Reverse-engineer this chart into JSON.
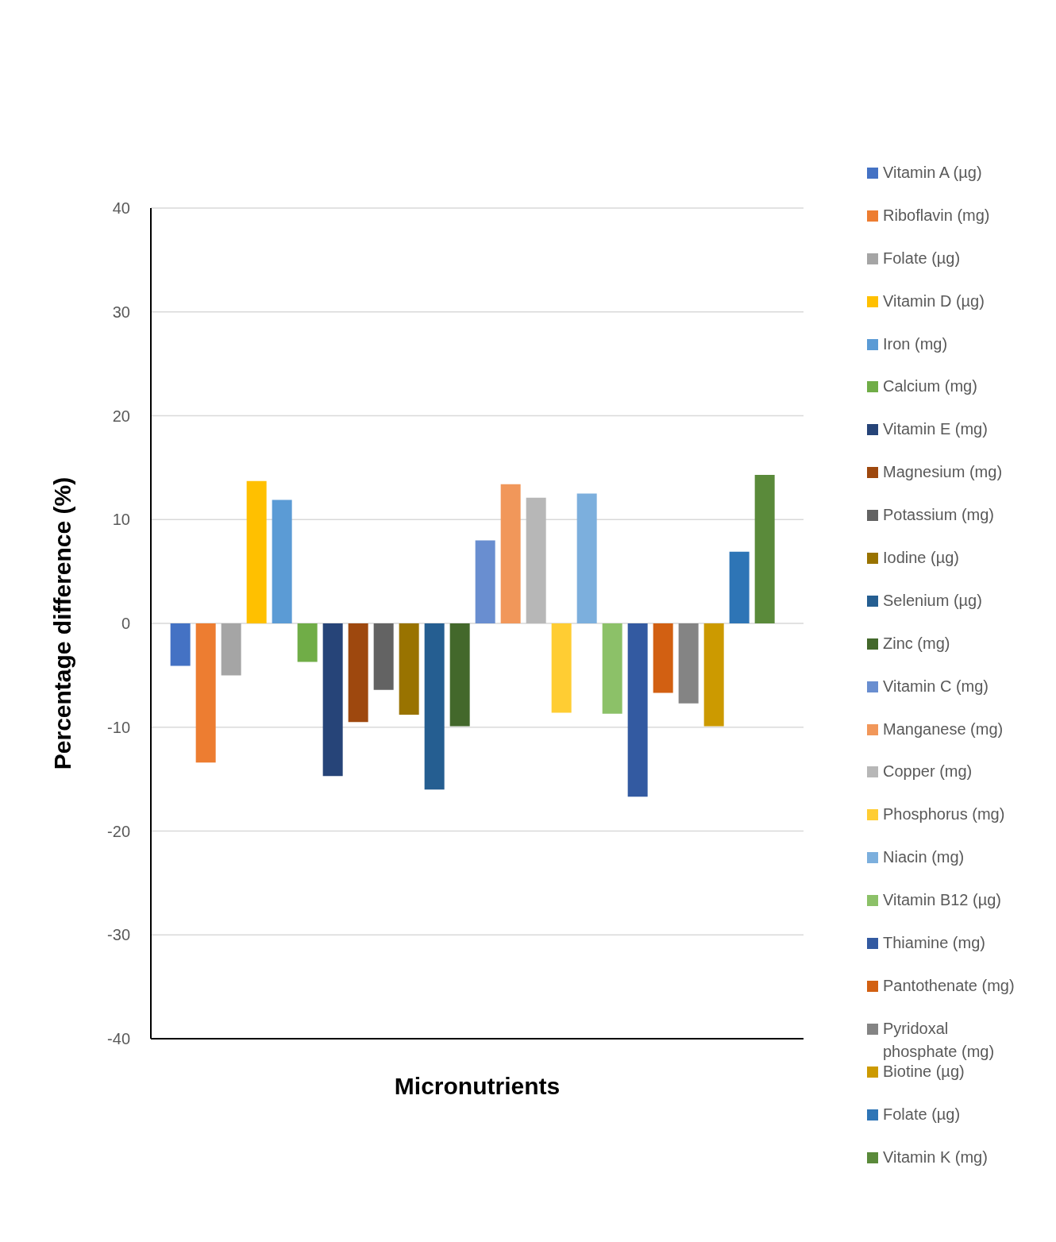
{
  "chart_data": {
    "type": "bar",
    "xlabel": "Micronutrients",
    "ylabel": "Percentage difference (%)",
    "categories": [
      null
    ],
    "ylim": [
      -40,
      40
    ],
    "yticks": [
      -40,
      -30,
      -20,
      -10,
      0,
      10,
      20,
      30,
      40
    ],
    "grid": "y",
    "legend": "right",
    "series": [
      {
        "name": "Vitamin A (µg)",
        "color": "#4472c4",
        "values": [
          -4.1
        ]
      },
      {
        "name": "Riboflavin (mg)",
        "color": "#ed7d31",
        "values": [
          -13.4
        ]
      },
      {
        "name": "Folate (µg)",
        "color": "#a5a5a5",
        "values": [
          -5.0
        ]
      },
      {
        "name": "Vitamin D (µg)",
        "color": "#ffc000",
        "values": [
          13.7
        ]
      },
      {
        "name": "Iron (mg)",
        "color": "#5b9bd5",
        "values": [
          11.9
        ]
      },
      {
        "name": "Calcium (mg)",
        "color": "#70ad47",
        "values": [
          -3.7
        ]
      },
      {
        "name": "Vitamin E (mg)",
        "color": "#264478",
        "values": [
          -14.7
        ]
      },
      {
        "name": "Magnesium (mg)",
        "color": "#9e480e",
        "values": [
          -9.5
        ]
      },
      {
        "name": "Potassium (mg)",
        "color": "#636363",
        "values": [
          -6.4
        ]
      },
      {
        "name": "Iodine (µg)",
        "color": "#997300",
        "values": [
          -8.8
        ]
      },
      {
        "name": "Selenium (µg)",
        "color": "#255e91",
        "values": [
          -16.0
        ]
      },
      {
        "name": "Zinc (mg)",
        "color": "#43682b",
        "values": [
          -9.9
        ]
      },
      {
        "name": "Vitamin C (mg)",
        "color": "#698ed0",
        "values": [
          8.0
        ]
      },
      {
        "name": "Manganese (mg)",
        "color": "#f1975a",
        "values": [
          13.4
        ]
      },
      {
        "name": "Copper (mg)",
        "color": "#b7b7b7",
        "values": [
          12.1
        ]
      },
      {
        "name": "Phosphorus (mg)",
        "color": "#ffcd33",
        "values": [
          -8.6
        ]
      },
      {
        "name": "Niacin (mg)",
        "color": "#7cafdd",
        "values": [
          12.5
        ]
      },
      {
        "name": "Vitamin B12 (µg)",
        "color": "#8cc168",
        "values": [
          -8.7
        ]
      },
      {
        "name": "Thiamine (mg)",
        "color": "#335aa1",
        "values": [
          -16.7
        ]
      },
      {
        "name": "Pantothenate (mg)",
        "color": "#d26012",
        "values": [
          -6.7
        ]
      },
      {
        "name": "Pyridoxal phosphate (mg)",
        "color": "#848484",
        "values": [
          -7.7
        ]
      },
      {
        "name": "Biotine (µg)",
        "color": "#cc9a00",
        "values": [
          -9.9
        ]
      },
      {
        "name": "Folate (µg)",
        "color": "#2e75b6",
        "values": [
          6.9
        ]
      },
      {
        "name": "Vitamin K (mg)",
        "color": "#5a8a3a",
        "values": [
          14.3
        ]
      }
    ]
  }
}
